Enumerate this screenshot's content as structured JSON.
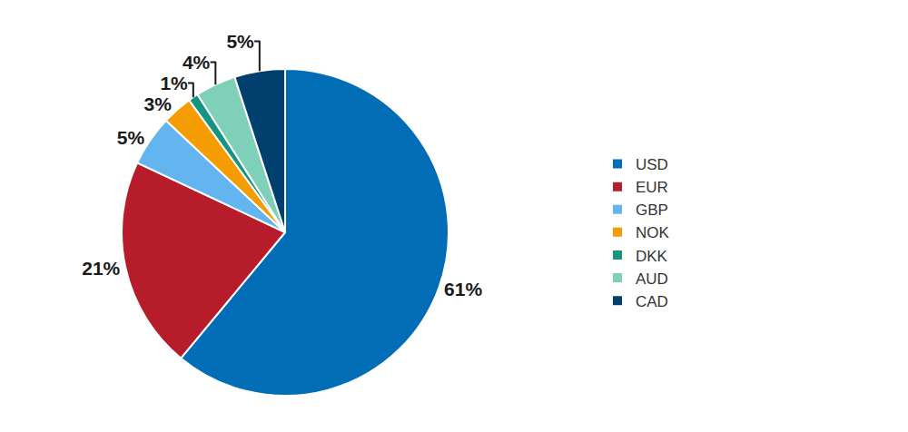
{
  "chart_data": {
    "type": "pie",
    "categories": [
      "USD",
      "EUR",
      "GBP",
      "NOK",
      "DKK",
      "AUD",
      "CAD"
    ],
    "values": [
      61,
      21,
      5,
      3,
      1,
      4,
      5
    ],
    "value_labels": [
      "61%",
      "21%",
      "5%",
      "3%",
      "1%",
      "4%",
      "5%"
    ],
    "colors": [
      "#006db6",
      "#b71c2b",
      "#62b5ef",
      "#f59c00",
      "#15957f",
      "#7fd0b8",
      "#003f6e"
    ],
    "legend": "right",
    "data_labels": true
  }
}
